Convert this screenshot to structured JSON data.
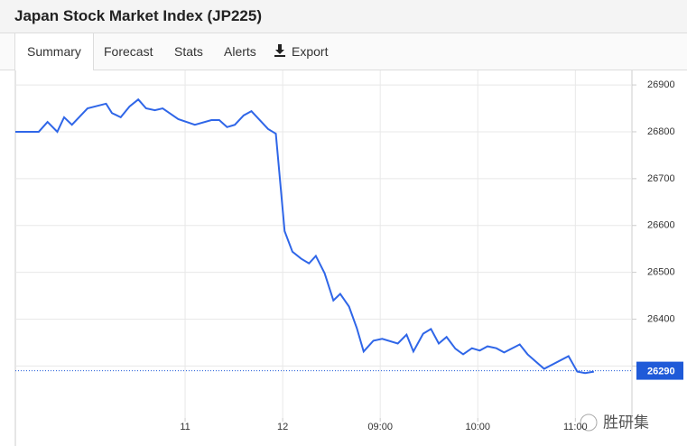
{
  "header": {
    "title": "Japan Stock Market Index (JP225)"
  },
  "tabs": [
    "Summary",
    "Forecast",
    "Stats",
    "Alerts",
    "Export"
  ],
  "watermark": "胜研集",
  "chart_data": {
    "type": "line",
    "x": [
      -0.74,
      -0.5,
      -0.41,
      -0.31,
      -0.24,
      -0.16,
      0,
      0.19,
      0.25,
      0.34,
      0.43,
      0.52,
      0.6,
      0.69,
      0.77,
      0.93,
      1.1,
      1.27,
      1.35,
      1.43,
      1.51,
      1.6,
      1.68,
      1.85,
      1.93,
      2.02,
      2.1,
      2.19,
      2.27,
      2.34,
      2.43,
      2.52,
      2.59,
      2.68,
      2.76,
      2.83,
      2.93,
      3.02,
      3.18,
      3.27,
      3.34,
      3.44,
      3.52,
      3.6,
      3.68,
      3.77,
      3.85,
      3.94,
      4.02,
      4.1,
      4.19,
      4.27,
      4.43,
      4.51,
      4.58,
      4.68,
      4.93,
      5.02,
      5.1,
      5.19
    ],
    "series": [
      {
        "color": "#2f66e8",
        "values": [
          26800,
          26800,
          26821,
          26800,
          26831,
          26815,
          26850,
          26860,
          26840,
          26831,
          26854,
          26869,
          26850,
          26846,
          26850,
          26827,
          26815,
          26825,
          26825,
          26810,
          26815,
          26835,
          26844,
          26806,
          26796,
          26588,
          26544,
          26529,
          26519,
          26535,
          26498,
          26440,
          26454,
          26427,
          26381,
          26331,
          26354,
          26358,
          26348,
          26367,
          26331,
          26369,
          26379,
          26348,
          26362,
          26337,
          26325,
          26338,
          26333,
          26342,
          26338,
          26329,
          26346,
          26325,
          26312,
          26294,
          26321,
          26288,
          26285,
          26288
        ]
      }
    ],
    "xlim": [
      -0.74,
      5.58
    ],
    "xticks": [
      {
        "value": 1,
        "label": "11"
      },
      {
        "value": 2,
        "label": "12"
      },
      {
        "value": 3,
        "label": "09:00"
      },
      {
        "value": 4,
        "label": "10:00"
      },
      {
        "value": 5,
        "label": "11:00"
      }
    ],
    "ylim": [
      26189,
      26931
    ],
    "yticks": [
      26300,
      26400,
      26500,
      26600,
      26700,
      26800,
      26900
    ],
    "current_value": 26290,
    "current_color": "#1f5ad8",
    "grid": true
  }
}
